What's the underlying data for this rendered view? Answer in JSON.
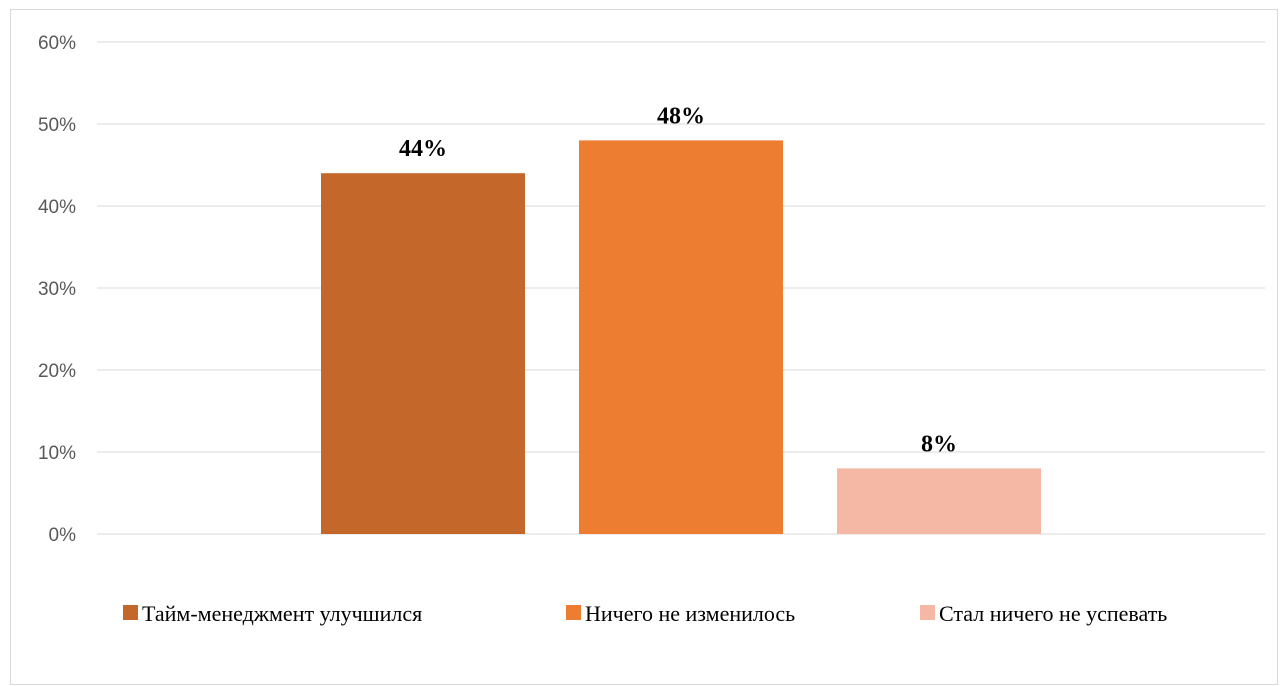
{
  "chart_data": {
    "type": "bar",
    "title": "",
    "xlabel": "",
    "ylabel": "",
    "ylim": [
      0,
      60
    ],
    "y_ticks": [
      "0%",
      "10%",
      "20%",
      "30%",
      "40%",
      "50%",
      "60%"
    ],
    "y_tick_values": [
      0,
      10,
      20,
      30,
      40,
      50,
      60
    ],
    "grid": true,
    "legend_position": "bottom",
    "series": [
      {
        "name": "Тайм-менеджмент улучшился",
        "value": 44,
        "label": "44%",
        "color": "#c4672a"
      },
      {
        "name": "Ничего не изменилось",
        "value": 48,
        "label": "48%",
        "color": "#ed7d31"
      },
      {
        "name": "Стал ничего не успевать",
        "value": 8,
        "label": "8%",
        "color": "#f4b8a4"
      }
    ]
  }
}
